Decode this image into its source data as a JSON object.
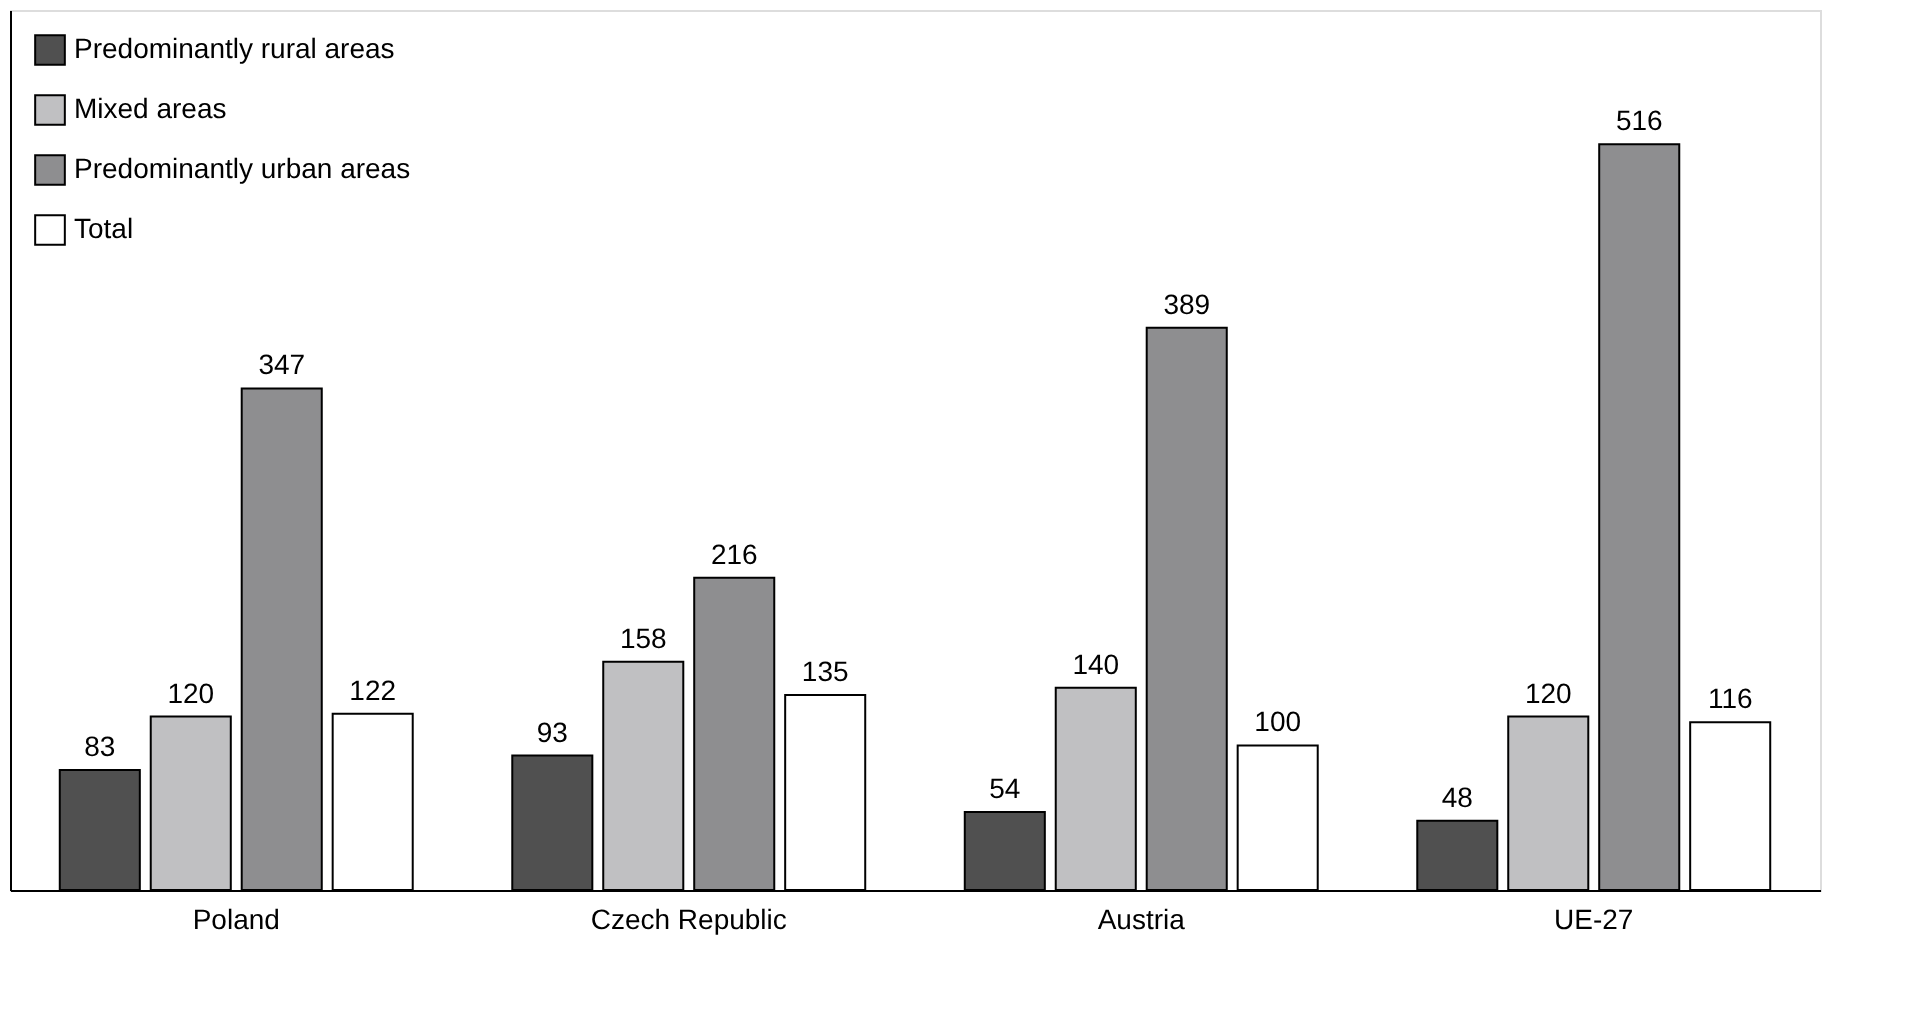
{
  "chart_data": {
    "type": "bar",
    "categories": [
      "Poland",
      "Czech Republic",
      "Austria",
      "UE-27"
    ],
    "series": [
      {
        "name": "Predominantly rural areas",
        "color": "#505050",
        "values": [
          83,
          93,
          54,
          48
        ]
      },
      {
        "name": "Mixed areas",
        "color": "#c0c0c2",
        "values": [
          120,
          158,
          140,
          120
        ]
      },
      {
        "name": "Predominantly urban areas",
        "color": "#8e8e90",
        "values": [
          347,
          216,
          389,
          516
        ]
      },
      {
        "name": "Total",
        "color": "#ffffff",
        "values": [
          122,
          135,
          100,
          116
        ]
      }
    ],
    "data_labels": true,
    "legend": "top left",
    "grid": false
  }
}
